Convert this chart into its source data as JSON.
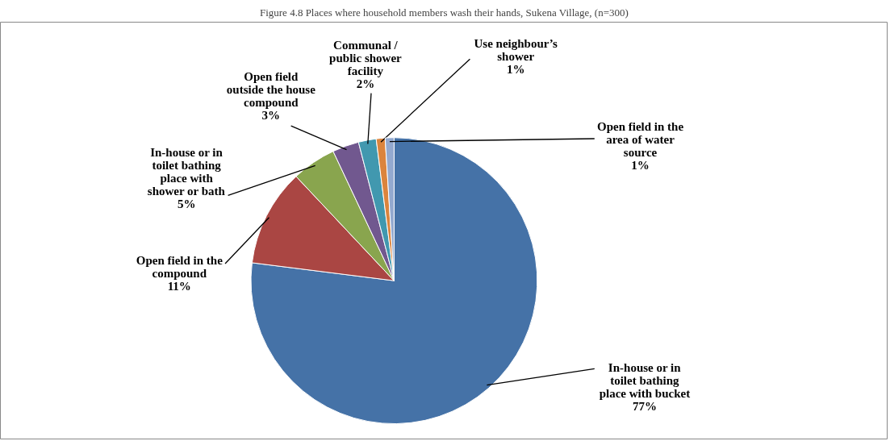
{
  "chart_data": {
    "type": "pie",
    "title": "Figure 4.8 Places where household members wash their hands, Sukena Village, (n=300)",
    "categories": [
      "In-house or in\ntoilet bathing\nplace with bucket",
      "Open field in the\ncompound",
      "In-house or in\ntoilet bathing\nplace with\nshower or bath",
      "Open field\noutside the house\ncompound",
      "Communal /\npublic shower\nfacility",
      "Use neighbour’s\nshower",
      "Open field in the\narea of water\nsource"
    ],
    "values": [
      77,
      11,
      5,
      3,
      2,
      1,
      1
    ],
    "colors": [
      "#4572a7",
      "#aa4643",
      "#89a54e",
      "#71588f",
      "#4198af",
      "#db843d",
      "#93a9cf"
    ],
    "value_labels": [
      "77%",
      "11%",
      "5%",
      "3%",
      "2%",
      "1%",
      "1%"
    ]
  }
}
